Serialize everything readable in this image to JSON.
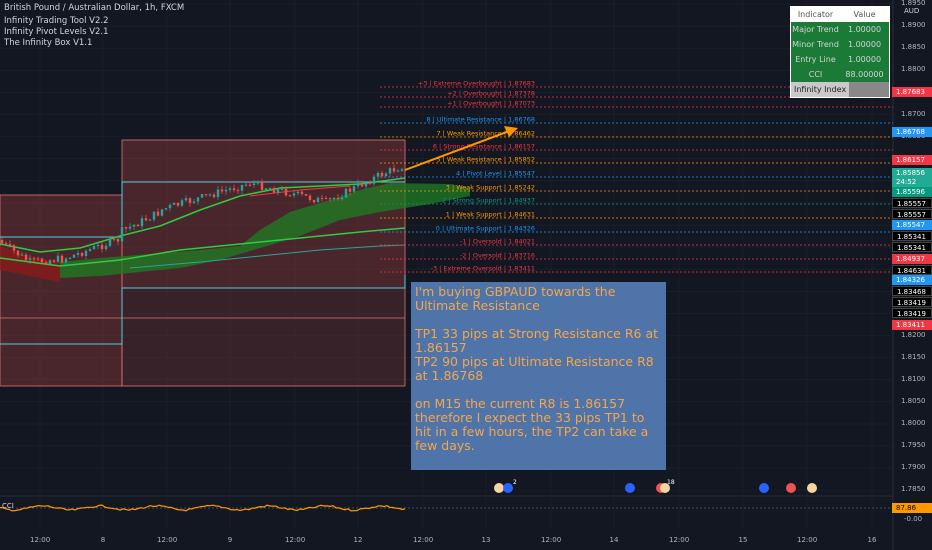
{
  "header": {
    "symbol_line": "British Pound / Australian Dollar, 1h, FXCM",
    "indicators": [
      "Infinity Trading Tool V2.2",
      "Infinity Pivot Levels V2.1",
      "The Infinity Box V1.1"
    ]
  },
  "axis": {
    "currency": "AUD",
    "price_ticks": [
      "1.8950",
      "1.8900",
      "1.8850",
      "1.8800",
      "1.8750",
      "1.8700",
      "1.8650",
      "1.8600",
      "1.8550",
      "1.8500",
      "1.8450",
      "1.8400",
      "1.8350",
      "1.8300",
      "1.8250",
      "1.8200",
      "1.8150",
      "1.8100",
      "1.8050",
      "1.8000",
      "1.7950",
      "1.7900",
      "1.7850"
    ],
    "time_ticks": [
      "12:00",
      "8",
      "12:00",
      "9",
      "12:00",
      "12",
      "12:00",
      "13",
      "12:00",
      "14",
      "12:00",
      "15",
      "12:00",
      "16"
    ],
    "cci_tick": "-0.00",
    "cci_label": "CCI",
    "cci_value": "87.86",
    "countdown": "24:52"
  },
  "price_tags": [
    {
      "text": "1.87683",
      "color": "#f23645"
    },
    {
      "text": "1.86768",
      "color": "#2196f3"
    },
    {
      "text": "1.86157",
      "color": "#f23645"
    },
    {
      "text": "1.85856",
      "color": "#22ab94"
    },
    {
      "text": "1.85596",
      "color": "#089981"
    },
    {
      "text": "1.85557",
      "color": "#000000"
    },
    {
      "text": "1.85557",
      "color": "#000000"
    },
    {
      "text": "1.85547",
      "color": "#2196f3"
    },
    {
      "text": "1.85341",
      "color": "#000000"
    },
    {
      "text": "1.85341",
      "color": "#000000"
    },
    {
      "text": "1.84937",
      "color": "#f23645"
    },
    {
      "text": "1.84631",
      "color": "#000000"
    },
    {
      "text": "1.84326",
      "color": "#2196f3"
    },
    {
      "text": "1.83468",
      "color": "#000000"
    },
    {
      "text": "1.83419",
      "color": "#000000"
    },
    {
      "text": "1.83419",
      "color": "#000000"
    },
    {
      "text": "1.83411",
      "color": "#f23645"
    }
  ],
  "levels": [
    {
      "label": "+3 | Extreme Overbought | 1.87683",
      "color": "#f23645"
    },
    {
      "label": "+2 | Overbought | 1.87378",
      "color": "#f23645"
    },
    {
      "label": "+1 | Overbought | 1.87073",
      "color": "#f23645"
    },
    {
      "label": "8 | Ultimate Resistance | 1.86768",
      "color": "#2196f3"
    },
    {
      "label": "7 | Weak Resistance | 1.86462",
      "color": "#ff9800"
    },
    {
      "label": "6 | Strong Resistance | 1.86157",
      "color": "#f23645"
    },
    {
      "label": "5 | Weak Resistance | 1.85852",
      "color": "#ff9800"
    },
    {
      "label": "4 | Pivot Level | 1.85547",
      "color": "#2196f3"
    },
    {
      "label": "3 | Weak Support | 1.85242",
      "color": "#ff9800"
    },
    {
      "label": "2 | Strong Support | 1.84937",
      "color": "#089981"
    },
    {
      "label": "1 | Weak Support | 1.84631",
      "color": "#ff9800"
    },
    {
      "label": "0 | Ultimate Support | 1.84326",
      "color": "#2196f3"
    },
    {
      "label": "-1 | Oversold | 1.84021",
      "color": "#f23645"
    },
    {
      "label": "-2 | Oversold | 1.83716",
      "color": "#f23645"
    },
    {
      "label": "-3 | Extreme Oversold | 1.83411",
      "color": "#f23645"
    }
  ],
  "indicator_table": {
    "headers": [
      "Indicator",
      "Value"
    ],
    "rows": [
      [
        "Major Trend",
        "1.00000"
      ],
      [
        "Minor Trend",
        "1.00000"
      ],
      [
        "Entry Line",
        "1.00000"
      ],
      [
        "CCI",
        "88.00000"
      ]
    ],
    "footer": "Infinity Index"
  },
  "note": {
    "p1": "I'm buying GBPAUD towards the Ultimate Resistance",
    "p2": "TP1 33 pips at Strong Resistance R6 at 1.86157",
    "p3": "TP2 90 pips at Ultimate Resistance R8 at 1.86768",
    "p4": "on M15 the current R8 is 1.86157 therefore I expect the 33 pips TP1 to hit in a few hours, the TP2 can take a few days."
  },
  "event_badges": [
    "2",
    "18"
  ],
  "colors": {
    "background": "#131722",
    "bull": "#26a69a",
    "bear": "#ef5350",
    "cloud": "#1e7d22",
    "box": "#e57373",
    "arrow": "#ff9800"
  }
}
